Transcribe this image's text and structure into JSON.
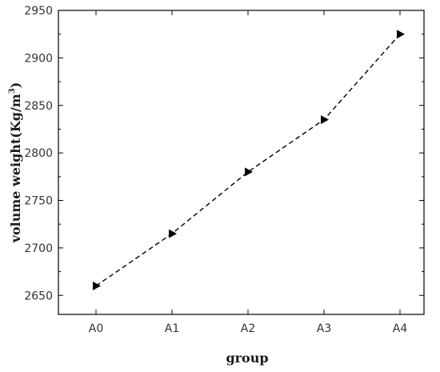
{
  "chart_data": {
    "type": "line",
    "title": "",
    "xlabel": "group",
    "ylabel_main": "volume weight(Kg/m",
    "ylabel_sup": "3",
    "ylabel_close": ")",
    "ylabel": "volume weight(Kg/m3)",
    "categories": [
      "A0",
      "A1",
      "A2",
      "A3",
      "A4"
    ],
    "series": [
      {
        "values": [
          2660,
          2715,
          2780,
          2835,
          2925
        ],
        "marker": "right-triangle",
        "line_style": "dashed",
        "color": "#000000"
      }
    ],
    "ylim": [
      2630,
      2950
    ],
    "yticks": [
      2650,
      2700,
      2750,
      2800,
      2850,
      2900,
      2950
    ],
    "grid": false
  }
}
